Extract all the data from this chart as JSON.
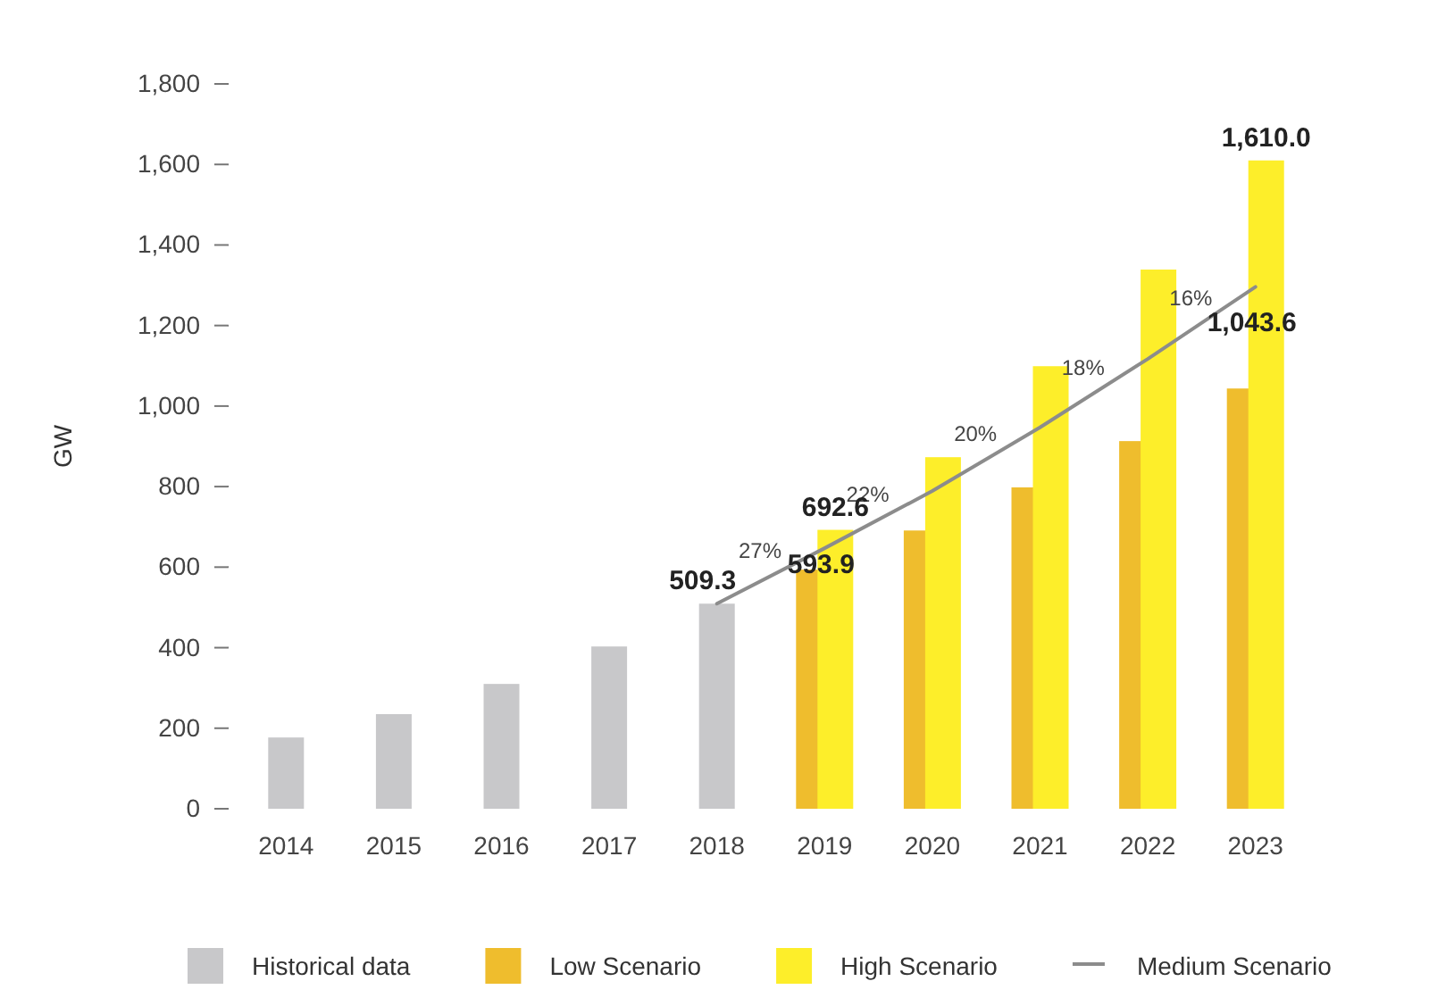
{
  "chart_data": {
    "type": "bar",
    "ylabel": "GW",
    "categories": [
      "2014",
      "2015",
      "2016",
      "2017",
      "2018",
      "2019",
      "2020",
      "2021",
      "2022",
      "2023"
    ],
    "series": [
      {
        "name": "Historical data",
        "color": "#c8c8ca",
        "values": [
          177,
          235,
          310,
          403,
          509.3,
          null,
          null,
          null,
          null,
          null
        ],
        "value_labels": [
          null,
          null,
          null,
          null,
          "509.3",
          null,
          null,
          null,
          null,
          null
        ]
      },
      {
        "name": "Low Scenario",
        "color": "#efbd2d",
        "values": [
          null,
          null,
          null,
          null,
          null,
          593.9,
          691,
          798,
          913,
          1043.6
        ],
        "value_labels": [
          null,
          null,
          null,
          null,
          null,
          "593.9",
          null,
          null,
          null,
          "1,043.6"
        ]
      },
      {
        "name": "High Scenario",
        "color": "#fdee2a",
        "values": [
          null,
          null,
          null,
          null,
          null,
          692.6,
          873,
          1099,
          1339,
          1610.0
        ],
        "value_labels": [
          null,
          null,
          null,
          null,
          null,
          "692.6",
          null,
          null,
          null,
          "1,610.0"
        ]
      },
      {
        "name": "Medium Scenario",
        "type": "line",
        "color": "#8c8c8c",
        "values": [
          null,
          null,
          null,
          null,
          509.3,
          647,
          789,
          947,
          1117,
          1296
        ]
      }
    ],
    "annotations": [
      "27%",
      "22%",
      "20%",
      "18%",
      "16%"
    ],
    "ylim": [
      0,
      1800
    ],
    "yticks": [
      0,
      200,
      400,
      600,
      800,
      {
        "value": 1000,
        "label": "1,000"
      },
      {
        "value": 1200,
        "label": "1,200"
      },
      {
        "value": 1400,
        "label": "1,400"
      },
      {
        "value": 1600,
        "label": "1,600"
      },
      {
        "value": 1800,
        "label": "1,800"
      }
    ],
    "legend": "bottom",
    "line_style": "solid",
    "marker": "none"
  }
}
